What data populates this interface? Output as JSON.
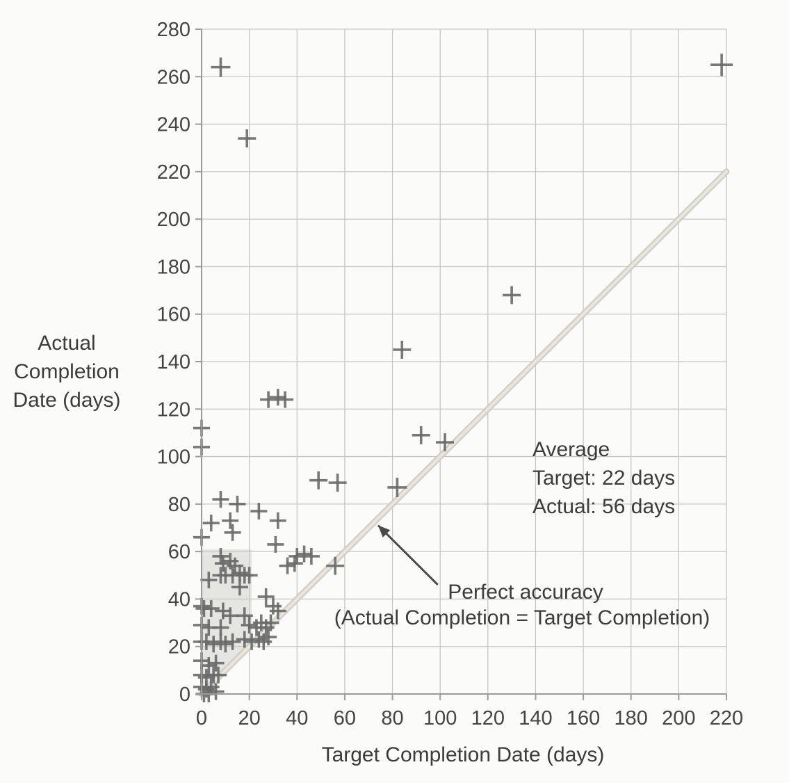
{
  "chart_data": {
    "type": "scatter",
    "title": "",
    "xlabel": "Target Completion Date (days)",
    "ylabel": "Actual Completion Date (days)",
    "ylabel_lines": [
      "Actual",
      "Completion",
      "Date (days)"
    ],
    "xlim": [
      0,
      220
    ],
    "ylim": [
      0,
      280
    ],
    "xticks": [
      0,
      20,
      40,
      60,
      80,
      100,
      120,
      140,
      160,
      180,
      200,
      220
    ],
    "yticks": [
      0,
      20,
      40,
      60,
      80,
      100,
      120,
      140,
      160,
      180,
      200,
      220,
      240,
      260,
      280
    ],
    "grid": true,
    "legend": "none",
    "marker": "plus",
    "points": [
      [
        8,
        264,
        14
      ],
      [
        19,
        234,
        13
      ],
      [
        218,
        265,
        16
      ],
      [
        130,
        168,
        13
      ],
      [
        84,
        145,
        13
      ],
      [
        92,
        109,
        13
      ],
      [
        102,
        106,
        13
      ],
      [
        28,
        124
      ],
      [
        32,
        125
      ],
      [
        35,
        124
      ],
      [
        0,
        112
      ],
      [
        0,
        104
      ],
      [
        49,
        90,
        13
      ],
      [
        57,
        89,
        13
      ],
      [
        82,
        87,
        14
      ],
      [
        8,
        82
      ],
      [
        15,
        80
      ],
      [
        24,
        77
      ],
      [
        4,
        72
      ],
      [
        12,
        73
      ],
      [
        32,
        73
      ],
      [
        0,
        66
      ],
      [
        13,
        68
      ],
      [
        31,
        63
      ],
      [
        40,
        58
      ],
      [
        43,
        59
      ],
      [
        46,
        58
      ],
      [
        36,
        54
      ],
      [
        39,
        55
      ],
      [
        56,
        54,
        13
      ],
      [
        8,
        58
      ],
      [
        9,
        55
      ],
      [
        12,
        56
      ],
      [
        14,
        54
      ],
      [
        8,
        50
      ],
      [
        10,
        50
      ],
      [
        13,
        50
      ],
      [
        16,
        51
      ],
      [
        18,
        50
      ],
      [
        20,
        50
      ],
      [
        3,
        48
      ],
      [
        16,
        45
      ],
      [
        27,
        41
      ],
      [
        30,
        37
      ],
      [
        0,
        37
      ],
      [
        1,
        36
      ],
      [
        4,
        36
      ],
      [
        9,
        35
      ],
      [
        12,
        33
      ],
      [
        18,
        33
      ],
      [
        32,
        35
      ],
      [
        0,
        29
      ],
      [
        3,
        28
      ],
      [
        8,
        28
      ],
      [
        20,
        29
      ],
      [
        23,
        28
      ],
      [
        25,
        30
      ],
      [
        27,
        28
      ],
      [
        29,
        30
      ],
      [
        0,
        22
      ],
      [
        2,
        22
      ],
      [
        5,
        21
      ],
      [
        8,
        22
      ],
      [
        10,
        21
      ],
      [
        13,
        22
      ],
      [
        18,
        23
      ],
      [
        21,
        22
      ],
      [
        24,
        23
      ],
      [
        26,
        22
      ],
      [
        28,
        24
      ],
      [
        0,
        14
      ],
      [
        3,
        12
      ],
      [
        6,
        13
      ],
      [
        0,
        8
      ],
      [
        2,
        7
      ],
      [
        5,
        8
      ],
      [
        7,
        8
      ],
      [
        0,
        3
      ],
      [
        2,
        2
      ],
      [
        4,
        3
      ],
      [
        1,
        0
      ],
      [
        3,
        0
      ],
      [
        6,
        1
      ]
    ],
    "reference_line": {
      "x1": 0,
      "y1": 0,
      "x2": 220,
      "y2": 220
    },
    "highlight_region": [
      [
        0,
        0
      ],
      [
        0,
        61
      ],
      [
        21,
        61
      ],
      [
        21,
        21
      ]
    ],
    "annotations": {
      "average": {
        "lines": [
          "Average",
          "Target: 22 days",
          "Actual: 56 days"
        ]
      },
      "perfect_accuracy": {
        "lines": [
          "Perfect accuracy",
          "(Actual Completion = Target Completion)"
        ],
        "arrow": {
          "from_x": 99,
          "from_y": 46,
          "to_x": 74,
          "to_y": 71
        }
      }
    },
    "colors": {
      "background": "#fbfbf9",
      "grid": "#c6c6c6",
      "axis": "#9b9b9b",
      "marker": "#6b6b6b",
      "reference_line_outer": "#cfccc2",
      "reference_line_inner": "#e8e6dd",
      "highlight": "#e0e0dc",
      "text": "#3f3f3f",
      "arrow": "#4a4a4a"
    }
  }
}
